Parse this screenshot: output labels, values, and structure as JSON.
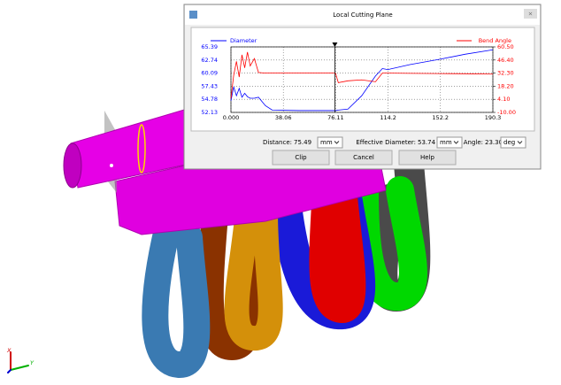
{
  "dialog": {
    "title": "Local Cutting Plane",
    "fields": [
      {
        "label": "Distance:",
        "value": 75.49,
        "unit": "mm"
      },
      {
        "label": "Effective Diameter:",
        "value": 53.74,
        "unit": "mm"
      },
      {
        "label": "Angle:",
        "value": {
          "value": 23.3,
          "label": "23.30"
        },
        "unit": "deg"
      }
    ],
    "buttons": [
      "Clip",
      "Cancel",
      "Help"
    ]
  },
  "scene": {
    "x_label": "X",
    "y_label": "Y"
  },
  "chart_data": {
    "type": "line",
    "x": [
      0,
      2,
      4,
      6,
      8,
      10,
      12,
      14,
      17,
      20,
      25,
      30,
      50,
      76,
      78,
      85,
      95,
      105,
      110,
      114,
      130,
      152,
      170,
      190.3
    ],
    "series": [
      {
        "name": "Diameter",
        "color": "#0000ff",
        "values": [
          54.5,
          57.3,
          55.5,
          57,
          55.2,
          56,
          55.3,
          55,
          55,
          55.2,
          53.5,
          52.6,
          52.5,
          52.5,
          52.6,
          52.8,
          55.5,
          59.5,
          61,
          60.8,
          61.8,
          62.9,
          63.9,
          64.8
        ]
      },
      {
        "name": "Bend Angle",
        "color": "#ff0000",
        "axis": "y2",
        "values": [
          5,
          30,
          45,
          28,
          52,
          38,
          55,
          40,
          48,
          33,
          32.3,
          32.3,
          32.3,
          32.3,
          22,
          24,
          25,
          23,
          32.3,
          32.3,
          32,
          31.8,
          31.6,
          31.2
        ]
      }
    ],
    "xlim": [
      0,
      190.3
    ],
    "xticks": [
      {
        "value": 0,
        "label": "0.000"
      },
      38.06,
      76.11,
      114.2,
      152.2,
      190.3
    ],
    "ylim": [
      52.13,
      65.39
    ],
    "yticks": [
      52.13,
      54.78,
      57.43,
      60.09,
      62.74,
      65.39
    ],
    "y2lim": [
      -10,
      60.5
    ],
    "y2ticks": [
      {
        "value": -10,
        "label": "-10.00"
      },
      {
        "value": 4.1,
        "label": "4.10"
      },
      {
        "value": 18.2,
        "label": "18.20"
      },
      {
        "value": 32.3,
        "label": "32.30"
      },
      {
        "value": 46.4,
        "label": "46.40"
      },
      {
        "value": 60.5,
        "label": "60.50"
      }
    ],
    "grid": true
  }
}
